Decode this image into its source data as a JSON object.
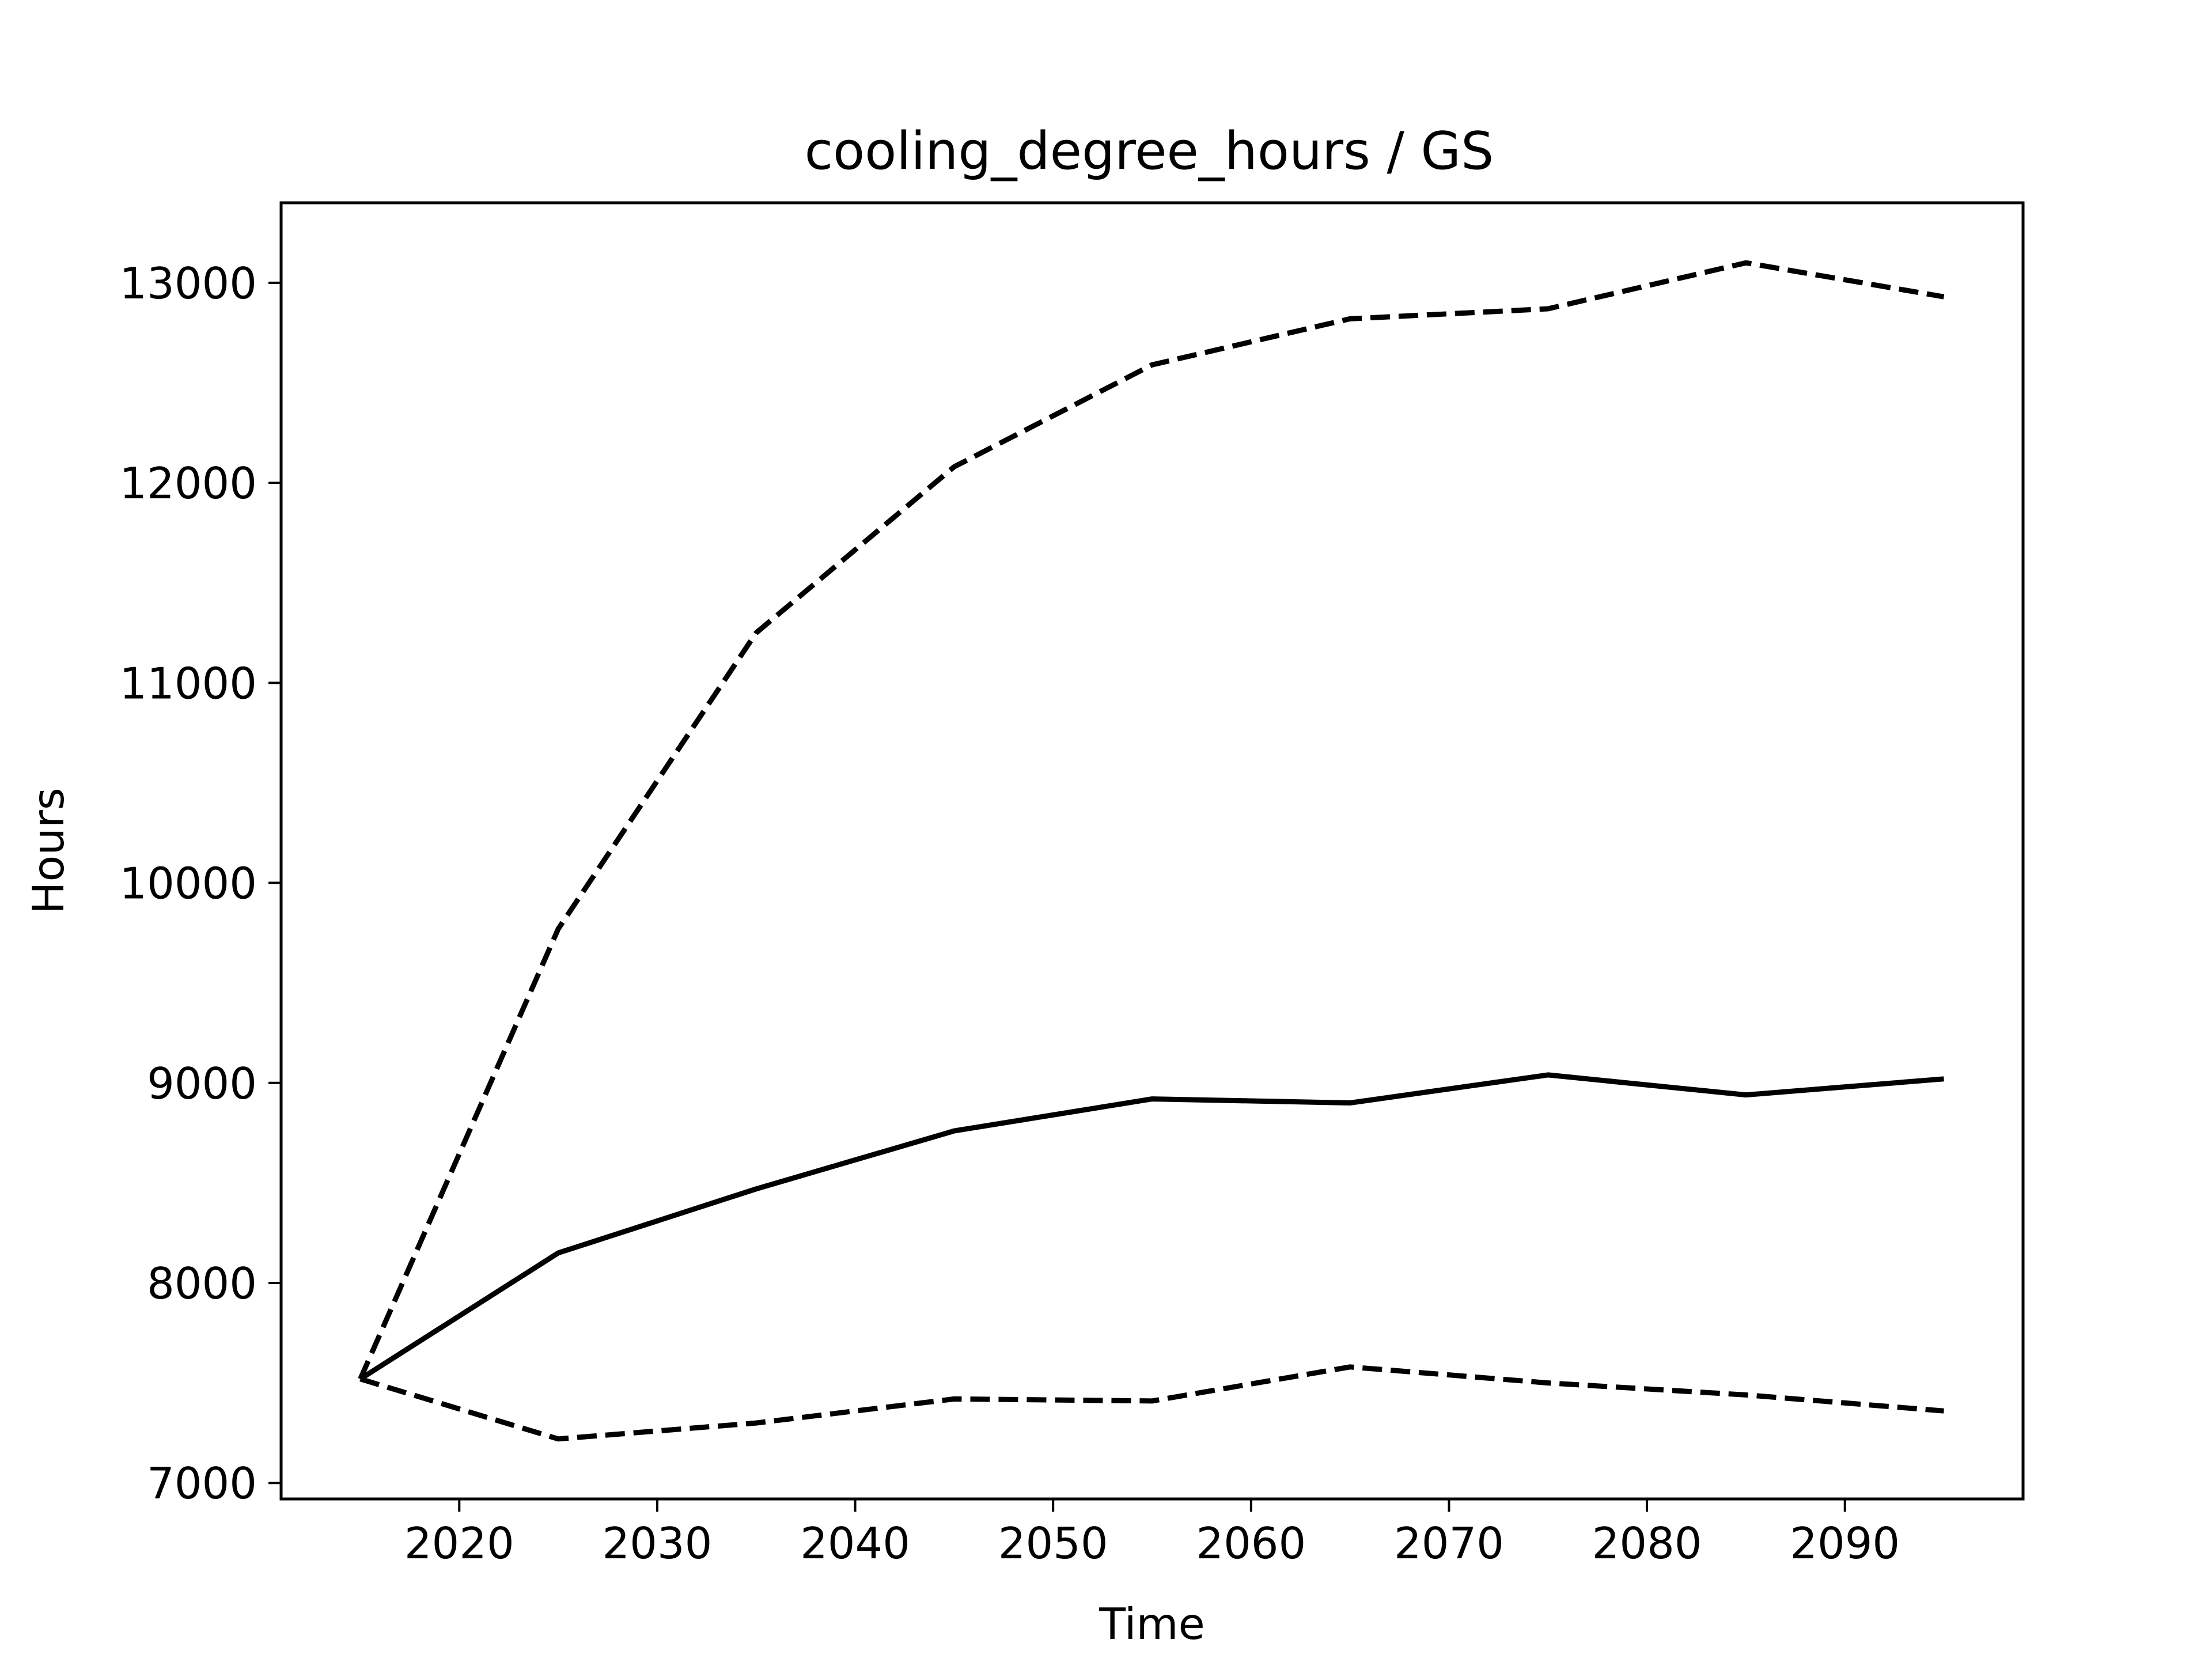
{
  "chart_data": {
    "type": "line",
    "title": "cooling_degree_hours / GS",
    "xlabel": "Time",
    "ylabel": "Hours",
    "xlim": [
      2011,
      2099
    ],
    "ylim": [
      6920,
      13400
    ],
    "xticks": [
      2020,
      2030,
      2040,
      2050,
      2060,
      2070,
      2080,
      2090
    ],
    "yticks": [
      7000,
      8000,
      9000,
      10000,
      11000,
      12000,
      13000
    ],
    "grid": false,
    "x": [
      2015,
      2025,
      2035,
      2045,
      2055,
      2065,
      2075,
      2085,
      2095
    ],
    "series": [
      {
        "style": "solid",
        "color": "#000000",
        "values": [
          7520,
          8150,
          8470,
          8760,
          8920,
          8900,
          9040,
          8940,
          9020
        ]
      },
      {
        "style": "dashed",
        "color": "#000000",
        "values": [
          7520,
          9770,
          11250,
          12080,
          12590,
          12820,
          12870,
          13100,
          12930
        ]
      },
      {
        "style": "dashed",
        "color": "#000000",
        "values": [
          7520,
          7220,
          7300,
          7420,
          7410,
          7580,
          7500,
          7440,
          7360
        ]
      }
    ]
  }
}
